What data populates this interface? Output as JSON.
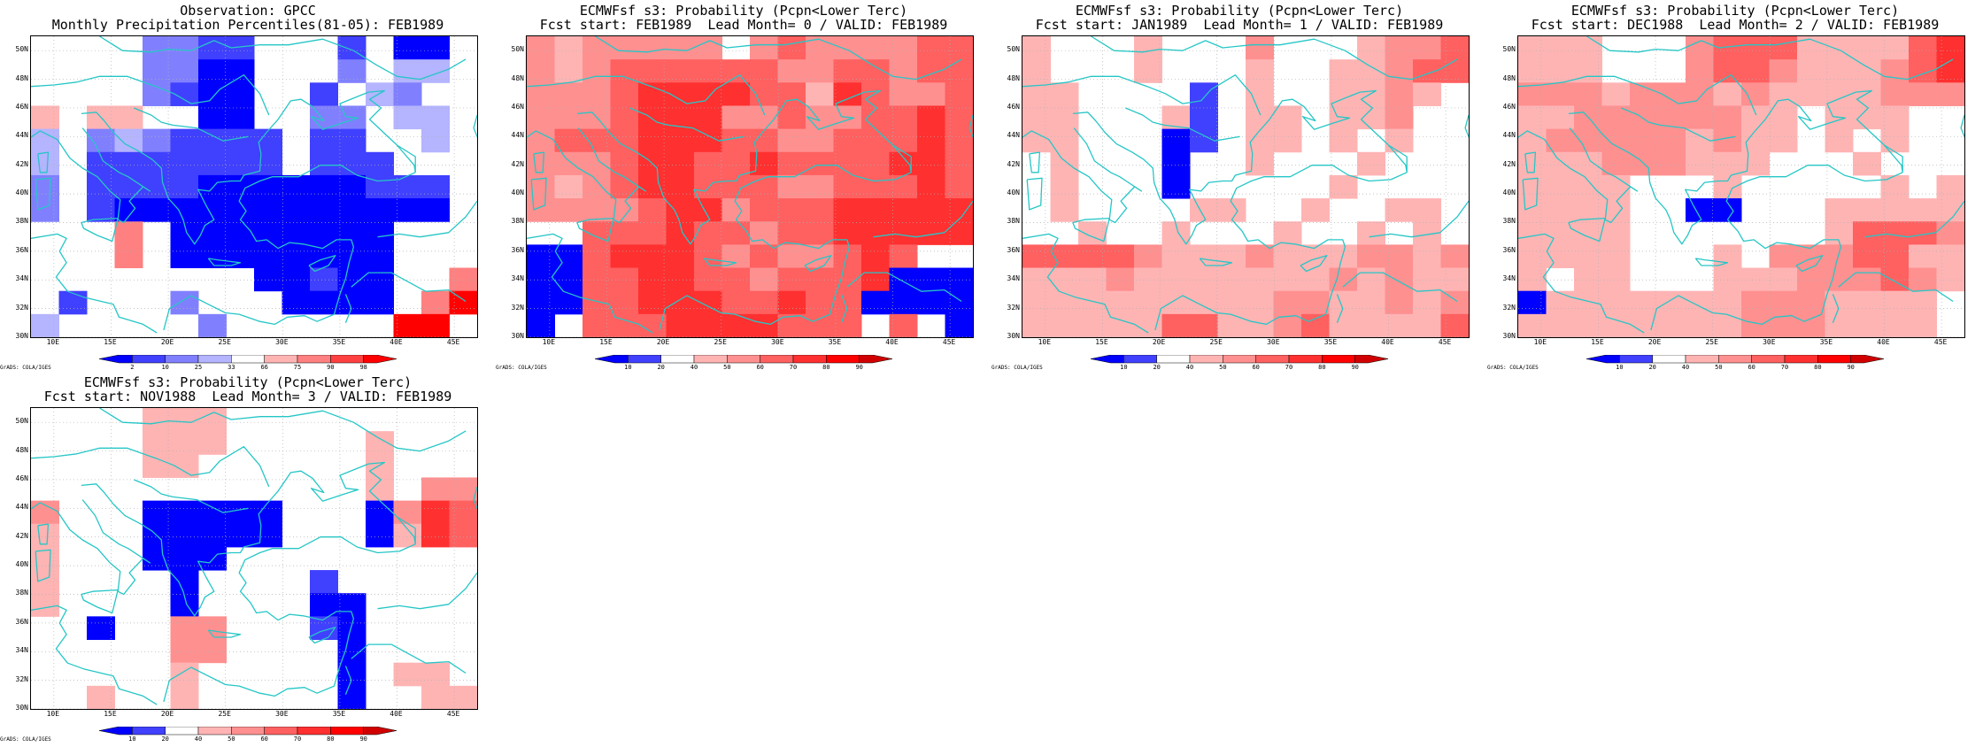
{
  "region": {
    "lon_min": 8,
    "lon_max": 47,
    "lat_min": 30,
    "lat_max": 51
  },
  "lon_ticks": [
    "10E",
    "15E",
    "20E",
    "25E",
    "30E",
    "35E",
    "40E",
    "45E"
  ],
  "lat_ticks": [
    "30N",
    "32N",
    "34N",
    "36N",
    "38N",
    "40N",
    "42N",
    "44N",
    "46N",
    "48N",
    "50N"
  ],
  "credit": "GrADS: COLA/IGES",
  "colors": {
    "coast": "#26c6c6",
    "grid": "#b0b0b0",
    "frame": "#000000"
  },
  "obs_scale": {
    "labels": [
      "2",
      "10",
      "25",
      "33",
      "66",
      "75",
      "90",
      "98"
    ],
    "colors": [
      "#0000ff",
      "#4040ff",
      "#8080ff",
      "#b4b4ff",
      "#ffffff",
      "#ffb4b4",
      "#ff8080",
      "#ff4040",
      "#ff0000"
    ]
  },
  "prob_scale": {
    "labels": [
      "10",
      "20",
      "40",
      "50",
      "60",
      "70",
      "80",
      "90"
    ],
    "colors": [
      "#0000ff",
      "#4040ff",
      "#ffffff",
      "#ffb4b4",
      "#ff9090",
      "#ff6060",
      "#ff3030",
      "#ff0000",
      "#d00000"
    ]
  },
  "panels": [
    {
      "title1": "Observation: GPCC",
      "title2": "Monthly Precipitation Percentiles(81-05): FEB1989",
      "scale": "obs",
      "grid": [
        "....2211...1.00.",
        "....2200...2.33.",
        "....2100..1.32..",
        "5.55..00..22.33.",
        "3.2321111.11..3.",
        "3.1111111.111...",
        "2.1111000000111.",
        "2.1000000000000.",
        "...6.00000000....",
        "...6.00000000....",
        "........00100..6",
        ".1...2...0000.68",
        "3.....2......88."
      ]
    },
    {
      "title1": "ECMWFsf s3: Probability (Pcpn<Lower Terc)",
      "title2": "Fcst start: FEB1989  Lead Month= 0 / VALID: FEB1989",
      "scale": "prob",
      "grid": [
        "4344444.45444455",
        "43455555544554555",
        "44456666553654455",
        "4445666445445565",
        "4555666554455565",
        "4445665565555665",
        "4345665554455565",
        "4444566455566666",
        "..55565545566666",
        "00566654544565",
        "0055665545556000",
        "00556665565500000",
        "0.5556666555.5.0"
      ]
    },
    {
      "title1": "ECMWFsf s3: Probability (Pcpn<Lower Terc)",
      "title2": "Fcst start: JAN1989  Lead Month= 1 / VALID: FEB1989",
      "scale": "prob",
      "grid": [
        "3...3...4...3445",
        "3...3...3..33455",
        "33....1.3..3343.",
        "33...31.33.334..",
        "33...01.33.3.3..",
        ".3...0..3...3...",
        ".3...0.....3....",
        ".3....33..3..33.",
        "..3..3...3..3.3.",
        "5555433343334434",
        "3334333333343433",
        "3333333334433434",
        "3333355334533335"
      ]
    },
    {
      "title1": "ECMWFsf s3: Probability (Pcpn<Lower Terc)",
      "title2": "Fcst start: DEC1988  Lead Month= 2 / VALID: FEB1989",
      "scale": "prob",
      "grid": [
        "333...45553333566",
        "333...45543334565",
        "4443444343333444",
        "3344444433.333..5",
        "3444443433.3.3..6",
        "333444333...3...6",
        "3333...3.....3.3",
        "3333..00...33333",
        "3333.......35554",
        "3333...3.4445533",
        "3.33...333444543",
        "033333334443333",
        "333333334443333"
      ]
    },
    {
      "title1": "ECMWFsf s3: Probability (Pcpn<Lower Terc)",
      "title2": "Fcst start: NOV1988  Lead Month= 3 / VALID: FEB1989",
      "scale": "prob",
      "grid": [
        "....333.........",
        "....333.....3...",
        "....33......3...",
        "............3.44",
        "4...00000...0465",
        "3...00000...0365",
        "3...000.........",
        "3....0....1.....",
        "3....0....00....",
        "..0..44...10....",
        ".....44....0....",
        ".....3.....0.33.",
        "..3..3.....0..33"
      ]
    }
  ]
}
